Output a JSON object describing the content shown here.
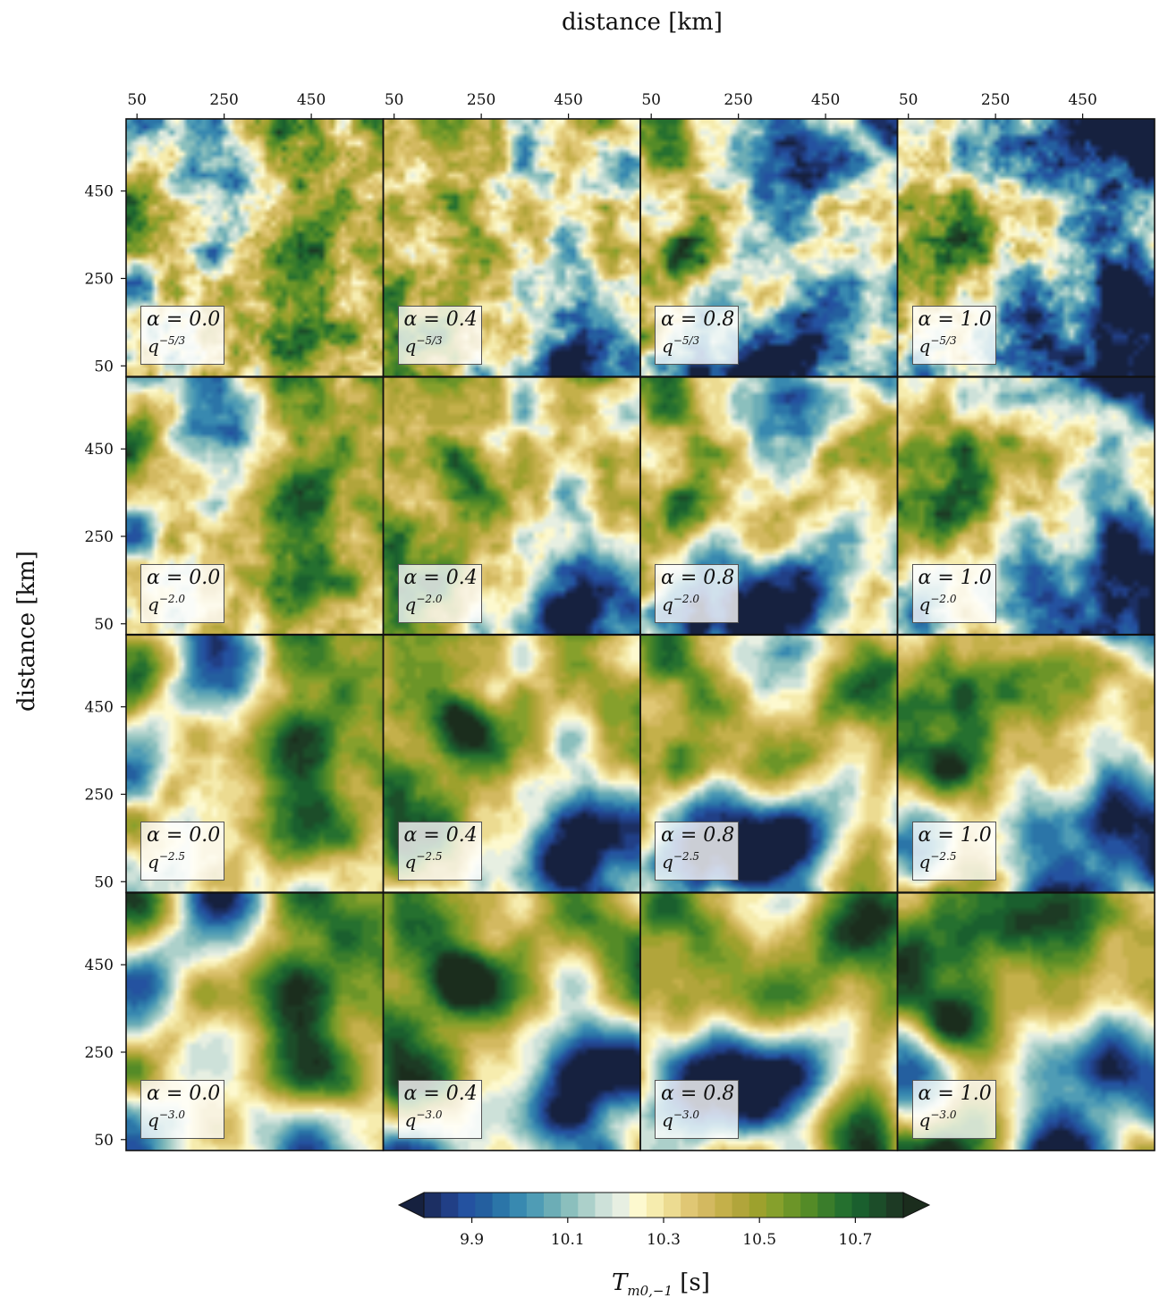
{
  "figure": {
    "top_xlabel": "distance [km]",
    "ylabel": "distance [km]",
    "colorbar_label": "T",
    "colorbar_label_sub": "m0,−1",
    "colorbar_label_unit": "[s]"
  },
  "chart_data": {
    "type": "heatmap",
    "description_of_panels": "4x4 grid of filled-contour maps",
    "x_ticks": [
      "50",
      "250",
      "450"
    ],
    "y_ticks": [
      "450",
      "250",
      "50"
    ],
    "x_tick_values": [
      50,
      250,
      450
    ],
    "y_tick_values": [
      450,
      250,
      50
    ],
    "axis_range_km": [
      25,
      615
    ],
    "alpha_values": [
      "0.0",
      "0.4",
      "0.8",
      "1.0"
    ],
    "spectra": [
      {
        "base": "q",
        "exp": "−5/3",
        "value": -1.6667
      },
      {
        "base": "q",
        "exp": "−2.0",
        "value": -2.0
      },
      {
        "base": "q",
        "exp": "−2.5",
        "value": -2.5
      },
      {
        "base": "q",
        "exp": "−3.0",
        "value": -3.0
      }
    ],
    "colorbar": {
      "min": 9.8,
      "max": 10.8,
      "levels": 30,
      "extend": "both",
      "tick_labels": [
        "9.9",
        "10.1",
        "10.3",
        "10.5",
        "10.7"
      ],
      "tick_values": [
        9.9,
        10.1,
        10.3,
        10.5,
        10.7
      ]
    },
    "colors": [
      "#16213f",
      "#1c2f63",
      "#213f86",
      "#2452a0",
      "#245f9f",
      "#2b75a8",
      "#3889b0",
      "#4f9cb5",
      "#6cadb6",
      "#8bbfbd",
      "#acd0ca",
      "#cde1d9",
      "#e7efe2",
      "#fdf9cf",
      "#f6ecae",
      "#ecdb91",
      "#e0c774",
      "#d3b960",
      "#c4b04a",
      "#b1a53b",
      "#9da12d",
      "#86a02c",
      "#6c9528",
      "#548b27",
      "#3a7d2b",
      "#25702f",
      "#1a5f2e",
      "#1c4d29",
      "#1d3a24",
      "#1b2d1d"
    ]
  }
}
